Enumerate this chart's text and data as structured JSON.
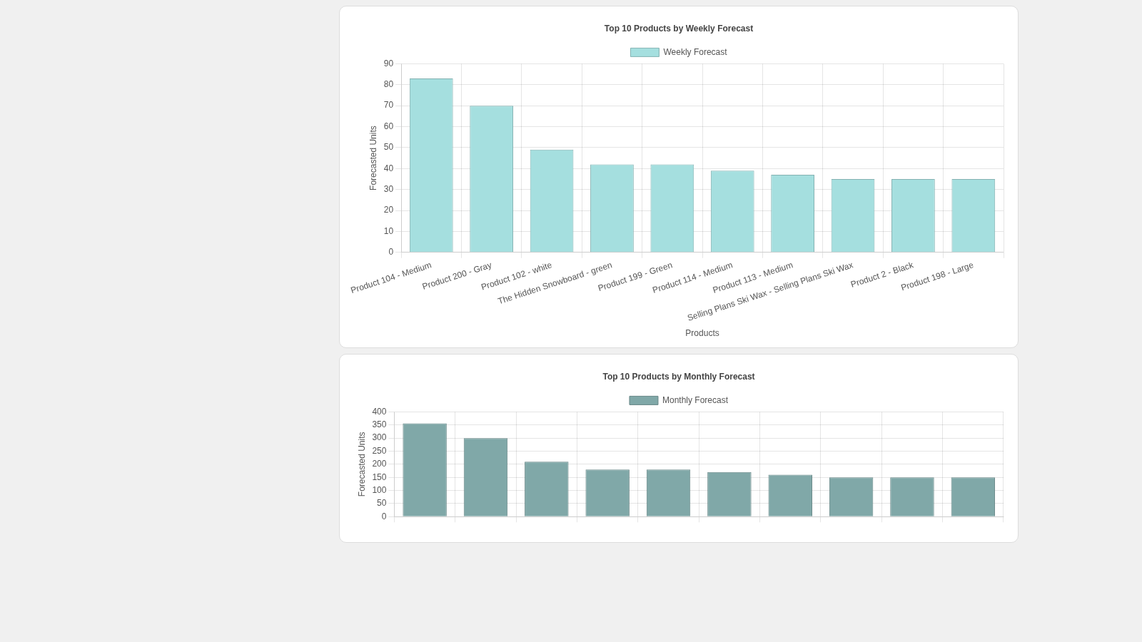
{
  "chart_data": [
    {
      "type": "bar",
      "title": "Top 10 Products by Weekly Forecast",
      "xlabel": "Products",
      "ylabel": "Forecasted Units",
      "categories": [
        "Product 104 - Medium",
        "Product 200 - Gray",
        "Product 102 - white",
        "The Hidden Snowboard - green",
        "Product 199 - Green",
        "Product 114 - Medium",
        "Product 113 - Medium",
        "Selling Plans Ski Wax - Selling Plans Ski Wax",
        "Product 2 - Black",
        "Product 198 - Large"
      ],
      "series": [
        {
          "name": "Weekly Forecast",
          "color": "#a5dfdf",
          "values": [
            83,
            70,
            49,
            42,
            42,
            39,
            37,
            35,
            35,
            35
          ]
        }
      ],
      "ylim": [
        0,
        90
      ],
      "yticks": [
        0,
        10,
        20,
        30,
        40,
        50,
        60,
        70,
        80,
        90
      ],
      "grid": true,
      "legend": "top"
    },
    {
      "type": "bar",
      "title": "Top 10 Products by Monthly Forecast",
      "ylabel": "Forecasted Units",
      "categories": [
        null,
        null,
        null,
        null,
        null,
        null,
        null,
        null,
        null,
        null
      ],
      "series": [
        {
          "name": "Monthly Forecast",
          "color": "#80a8a8",
          "values": [
            356,
            300,
            210,
            180,
            180,
            170,
            160,
            150,
            150,
            150
          ]
        }
      ],
      "ylim": [
        0,
        400
      ],
      "yticks": [
        0,
        50,
        100,
        150,
        200,
        250,
        300,
        350,
        400
      ],
      "grid": true,
      "legend": "top"
    }
  ]
}
